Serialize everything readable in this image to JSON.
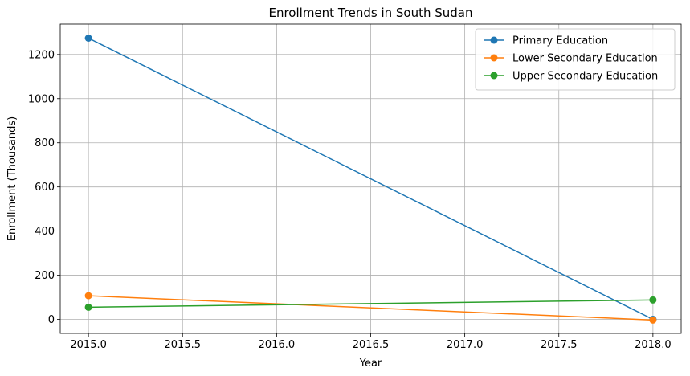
{
  "chart_data": {
    "type": "line",
    "title": "Enrollment Trends in South Sudan",
    "xlabel": "Year",
    "ylabel": "Enrollment (Thousands)",
    "x": [
      2015,
      2018
    ],
    "xlim": [
      2014.85,
      2018.15
    ],
    "ylim": [
      -63.7,
      1337.7
    ],
    "xticks": [
      2015.0,
      2015.5,
      2016.0,
      2016.5,
      2017.0,
      2017.5,
      2018.0
    ],
    "xtick_labels": [
      "2015.0",
      "2015.5",
      "2016.0",
      "2016.5",
      "2017.0",
      "2017.5",
      "2018.0"
    ],
    "yticks": [
      0,
      200,
      400,
      600,
      800,
      1000,
      1200
    ],
    "ytick_labels": [
      "0",
      "200",
      "400",
      "600",
      "800",
      "1000",
      "1200"
    ],
    "grid": true,
    "legend_position": "top-right",
    "series": [
      {
        "name": "Primary Education",
        "color": "#1f77b4",
        "values": [
          1274,
          0
        ]
      },
      {
        "name": "Lower Secondary Education",
        "color": "#ff7f0e",
        "values": [
          107,
          -3
        ]
      },
      {
        "name": "Upper Secondary Education",
        "color": "#2ca02c",
        "values": [
          55,
          88
        ]
      }
    ]
  }
}
